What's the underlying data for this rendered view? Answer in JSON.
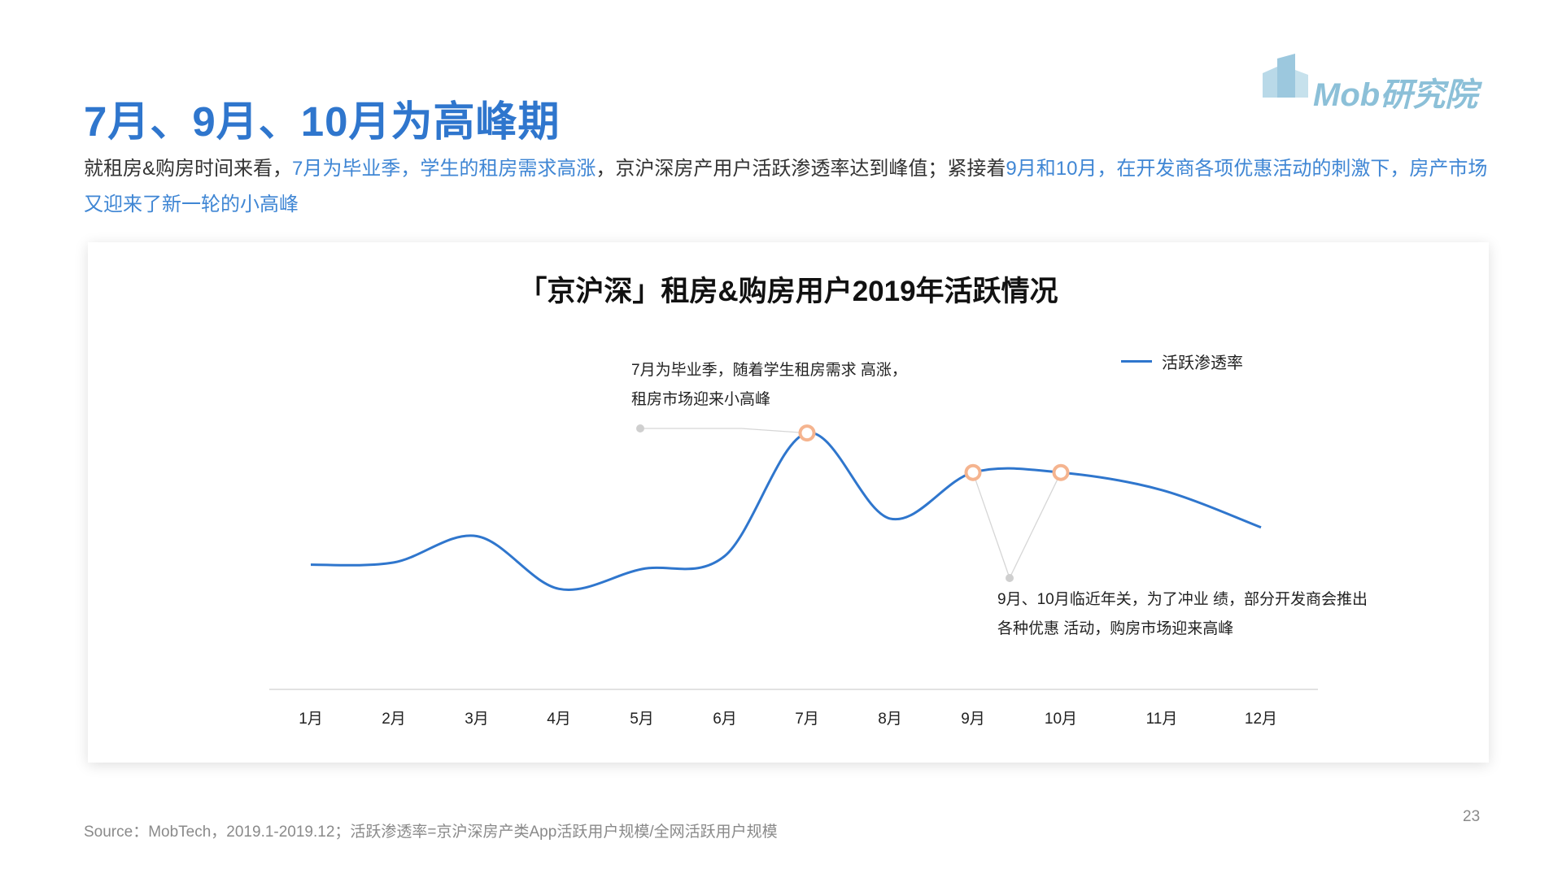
{
  "page": {
    "title": "7月、9月、10月为高峰期",
    "logo_text": "Mob研究院",
    "intro": {
      "p1": "就租房&购房时间来看，",
      "p2": "7月为毕业季，学生的租房需求高涨",
      "p3": "，京沪深房产用户活跃渗透率达到峰值；紧接着",
      "p4": "9月和10月，在开发商各项优惠活动的刺激下，房产市场又迎来了新一轮的小高峰"
    },
    "source": "Source：MobTech，2019.1-2019.12；活跃渗透率=京沪深房产类App活跃用户规模/全网活跃用户规模",
    "page_number": "23"
  },
  "colors": {
    "title": "#2f76cd",
    "highlight": "#3f86d4",
    "series": "#2f76cd",
    "marker": "#f5b48f"
  },
  "chart_data": {
    "type": "line",
    "title": "「京沪深」租房&购房用户2019年活跃情况",
    "categories": [
      "1月",
      "2月",
      "3月",
      "4月",
      "5月",
      "6月",
      "7月",
      "8月",
      "9月",
      "10月",
      "11月",
      "12月"
    ],
    "series": [
      {
        "name": "活跃渗透率",
        "values": [
          0.32,
          0.33,
          0.45,
          0.21,
          0.3,
          0.36,
          0.92,
          0.53,
          0.74,
          0.74,
          0.66,
          0.49
        ]
      }
    ],
    "ylim": [
      0,
      1
    ],
    "highlighted_points": [
      "7月",
      "9月",
      "10月"
    ],
    "legend_position": "top-right",
    "grid": false,
    "annotations": [
      {
        "target": "7月",
        "lines": [
          "7月为毕业季，随着学生租房需求 高涨，",
          "租房市场迎来小高峰"
        ]
      },
      {
        "target": "9月、10月",
        "lines": [
          "9月、10月临近年关，为了冲业 绩，部分开发商会推出",
          "各种优惠 活动，购房市场迎来高峰"
        ]
      }
    ]
  }
}
